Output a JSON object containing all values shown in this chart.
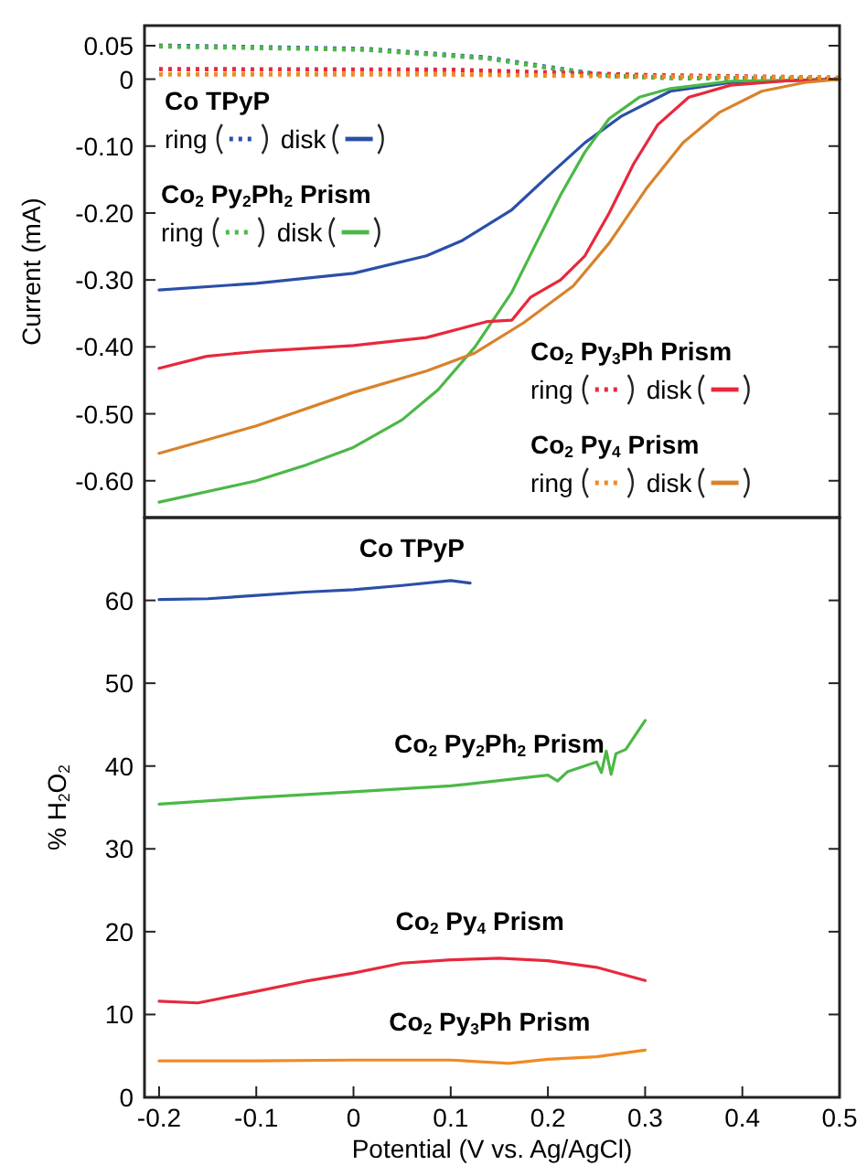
{
  "chart_data": [
    {
      "type": "line",
      "ylabel": "Current (mA)",
      "xlim": [
        -0.215,
        0.5
      ],
      "ylim": [
        -0.655,
        0.08
      ],
      "yticks": [
        {
          "value": 0.05,
          "label": "0.05"
        },
        0,
        {
          "value": -0.1,
          "label": "-0.10"
        },
        {
          "value": -0.2,
          "label": "-0.20"
        },
        {
          "value": -0.3,
          "label": "-0.30"
        },
        {
          "value": -0.4,
          "label": "-0.40"
        },
        {
          "value": -0.5,
          "label": "-0.50"
        },
        {
          "value": -0.6,
          "label": "-0.60"
        }
      ],
      "tick_labels": "y",
      "annotations": [
        "Co TPyP",
        "ring",
        "disk",
        "Co$_{2}$ Py$_{2}$Ph$_{2}$ Prism",
        "ring",
        "disk",
        "Co$_{2}$ Py$_{3}$Ph Prism",
        "ring",
        "disk",
        "Co$_{2}$ Py$_{4}$ Prism",
        "ring",
        "disk"
      ],
      "series": [
        {
          "color": "#2b4fa8",
          "line_style": "dotted",
          "x": [
            -0.2,
            0.012,
            0.138,
            0.2,
            0.263,
            0.326,
            0.5
          ],
          "values": [
            0.05,
            0.045,
            0.032,
            0.018,
            0.005,
            0.002,
            0
          ]
        },
        {
          "color": "#2b4fa8",
          "line_style": "solid",
          "x": [
            -0.2,
            -0.1,
            0,
            0.075,
            0.112,
            0.163,
            0.2,
            0.238,
            0.276,
            0.326,
            0.388,
            0.5
          ],
          "values": [
            -0.315,
            -0.305,
            -0.29,
            -0.264,
            -0.241,
            -0.195,
            -0.145,
            -0.095,
            -0.055,
            -0.018,
            -0.005,
            0
          ]
        },
        {
          "color": "#4cb847",
          "line_style": "dotted",
          "x": [
            -0.2,
            0.012,
            0.138,
            0.2,
            0.263,
            0.326,
            0.5
          ],
          "values": [
            0.049,
            0.044,
            0.031,
            0.017,
            0.005,
            0.002,
            0
          ]
        },
        {
          "color": "#4cb847",
          "line_style": "solid",
          "x": [
            -0.2,
            -0.1,
            -0.05,
            0,
            0.05,
            0.087,
            0.125,
            0.163,
            0.188,
            0.213,
            0.238,
            0.263,
            0.294,
            0.326,
            0.388,
            0.5
          ],
          "values": [
            -0.632,
            -0.6,
            -0.577,
            -0.55,
            -0.509,
            -0.464,
            -0.4,
            -0.318,
            -0.245,
            -0.173,
            -0.109,
            -0.059,
            -0.027,
            -0.014,
            -0.003,
            0
          ]
        },
        {
          "color": "#e8283c",
          "line_style": "dotted",
          "x": [
            -0.2,
            0.1,
            0.3,
            0.5
          ],
          "values": [
            0.015,
            0.014,
            0.006,
            0.002
          ]
        },
        {
          "color": "#e8283c",
          "line_style": "solid",
          "x": [
            -0.2,
            -0.151,
            -0.1,
            0,
            0.075,
            0.138,
            0.163,
            0.182,
            0.213,
            0.238,
            0.263,
            0.288,
            0.313,
            0.345,
            0.388,
            0.451,
            0.5
          ],
          "values": [
            -0.432,
            -0.414,
            -0.407,
            -0.398,
            -0.386,
            -0.362,
            -0.36,
            -0.326,
            -0.3,
            -0.264,
            -0.2,
            -0.127,
            -0.068,
            -0.027,
            -0.009,
            -0.002,
            0
          ]
        },
        {
          "color": "#f08a24",
          "line_style": "dotted",
          "x": [
            -0.2,
            0.1,
            0.3,
            0.5
          ],
          "values": [
            0.007,
            0.007,
            0.004,
            0.002
          ]
        },
        {
          "color": "#d9822b",
          "line_style": "solid",
          "x": [
            -0.2,
            -0.1,
            0,
            0.075,
            0.125,
            0.175,
            0.226,
            0.263,
            0.301,
            0.339,
            0.376,
            0.42,
            0.464,
            0.5
          ],
          "values": [
            -0.559,
            -0.518,
            -0.468,
            -0.436,
            -0.409,
            -0.364,
            -0.309,
            -0.245,
            -0.164,
            -0.095,
            -0.05,
            -0.018,
            -0.005,
            0
          ]
        }
      ]
    },
    {
      "type": "line",
      "xlabel": "Potential (V vs. Ag/AgCl)",
      "ylabel": "% H$_{2}$O$_{2}$",
      "xlim": [
        -0.215,
        0.5
      ],
      "xticks": [
        -0.2,
        -0.1,
        0,
        0.1,
        0.2,
        0.3,
        0.4,
        0.5
      ],
      "ylim": [
        0,
        70
      ],
      "yticks": [
        0,
        10,
        20,
        30,
        40,
        50,
        60
      ],
      "series": [
        {
          "name": "Co TPyP",
          "color": "#2b4fa8",
          "x": [
            -0.2,
            -0.15,
            -0.1,
            -0.05,
            0,
            0.05,
            0.1,
            0.12
          ],
          "values": [
            60.1,
            60.2,
            60.6,
            61,
            61.3,
            61.8,
            62.4,
            62.1
          ]
        },
        {
          "name": "Co$_{2}$ Py$_{2}$Ph$_{2}$ Prism",
          "color": "#4cb847",
          "x": [
            -0.2,
            -0.1,
            0,
            0.1,
            0.2,
            0.21,
            0.22,
            0.25,
            0.255,
            0.26,
            0.265,
            0.27,
            0.28,
            0.3
          ],
          "values": [
            35.4,
            36.2,
            36.9,
            37.6,
            38.9,
            38.2,
            39.3,
            40.5,
            39.2,
            41.8,
            39,
            41.5,
            42,
            45.5
          ]
        },
        {
          "name": "Co$_{2}$ Py$_{4}$ Prism",
          "color": "#e8283c",
          "x": [
            -0.2,
            -0.16,
            -0.1,
            -0.05,
            0,
            0.05,
            0.1,
            0.15,
            0.2,
            0.25,
            0.3
          ],
          "values": [
            11.6,
            11.4,
            12.8,
            14,
            15,
            16.2,
            16.6,
            16.8,
            16.5,
            15.7,
            14.1
          ]
        },
        {
          "name": "Co$_{2}$ Py$_{3}$Ph Prism",
          "color": "#f08a24",
          "x": [
            -0.2,
            -0.1,
            0,
            0.1,
            0.16,
            0.2,
            0.25,
            0.3
          ],
          "values": [
            4.4,
            4.4,
            4.5,
            4.5,
            4.1,
            4.6,
            4.9,
            5.7
          ]
        }
      ]
    }
  ]
}
